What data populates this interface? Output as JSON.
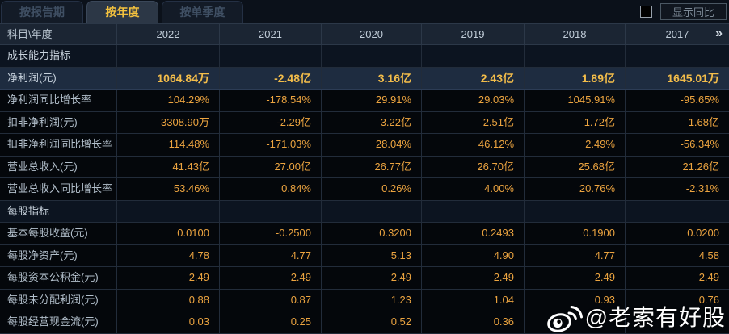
{
  "tabs": [
    {
      "label": "按报告期",
      "active": false
    },
    {
      "label": "按年度",
      "active": true
    },
    {
      "label": "按单季度",
      "active": false
    }
  ],
  "controls": {
    "show_yoy_label": "显示同比",
    "show_yoy_checked": false
  },
  "table": {
    "header": {
      "label": "科目\\年度",
      "years": [
        "2022",
        "2021",
        "2020",
        "2019",
        "2018",
        "2017"
      ],
      "more_icon": "»"
    },
    "rows": [
      {
        "type": "section",
        "label": "成长能力指标",
        "values": [
          "",
          "",
          "",
          "",
          "",
          ""
        ]
      },
      {
        "type": "highlight",
        "label": "净利润(元)",
        "values": [
          "1064.84万",
          "-2.48亿",
          "3.16亿",
          "2.43亿",
          "1.89亿",
          "1645.01万"
        ]
      },
      {
        "type": "data",
        "label": "净利润同比增长率",
        "values": [
          "104.29%",
          "-178.54%",
          "29.91%",
          "29.03%",
          "1045.91%",
          "-95.65%"
        ]
      },
      {
        "type": "data",
        "label": "扣非净利润(元)",
        "values": [
          "3308.90万",
          "-2.29亿",
          "3.22亿",
          "2.51亿",
          "1.72亿",
          "1.68亿"
        ]
      },
      {
        "type": "data",
        "label": "扣非净利润同比增长率",
        "values": [
          "114.48%",
          "-171.03%",
          "28.04%",
          "46.12%",
          "2.49%",
          "-56.34%"
        ]
      },
      {
        "type": "data",
        "label": "营业总收入(元)",
        "values": [
          "41.43亿",
          "27.00亿",
          "26.77亿",
          "26.70亿",
          "25.68亿",
          "21.26亿"
        ]
      },
      {
        "type": "data",
        "label": "营业总收入同比增长率",
        "values": [
          "53.46%",
          "0.84%",
          "0.26%",
          "4.00%",
          "20.76%",
          "-2.31%"
        ]
      },
      {
        "type": "section",
        "label": "每股指标",
        "values": [
          "",
          "",
          "",
          "",
          "",
          ""
        ]
      },
      {
        "type": "data",
        "label": "基本每股收益(元)",
        "values": [
          "0.0100",
          "-0.2500",
          "0.3200",
          "0.2493",
          "0.1900",
          "0.0200"
        ]
      },
      {
        "type": "data",
        "label": "每股净资产(元)",
        "values": [
          "4.78",
          "4.77",
          "5.13",
          "4.90",
          "4.77",
          "4.58"
        ]
      },
      {
        "type": "data",
        "label": "每股资本公积金(元)",
        "values": [
          "2.49",
          "2.49",
          "2.49",
          "2.49",
          "2.49",
          "2.49"
        ]
      },
      {
        "type": "data",
        "label": "每股未分配利润(元)",
        "values": [
          "0.88",
          "0.87",
          "1.23",
          "1.04",
          "0.93",
          "0.76"
        ]
      },
      {
        "type": "data",
        "label": "每股经营现金流(元)",
        "values": [
          "0.03",
          "0.25",
          "0.52",
          "0.36",
          "",
          ""
        ]
      }
    ]
  },
  "watermark": {
    "text": "@老索有好股"
  },
  "colors": {
    "accent_gold": "#eca440",
    "highlight_row_bg": "#1e2c40",
    "active_tab_text": "#f4c23e",
    "header_bg": "#1b2533",
    "page_bg": "#060a10"
  }
}
